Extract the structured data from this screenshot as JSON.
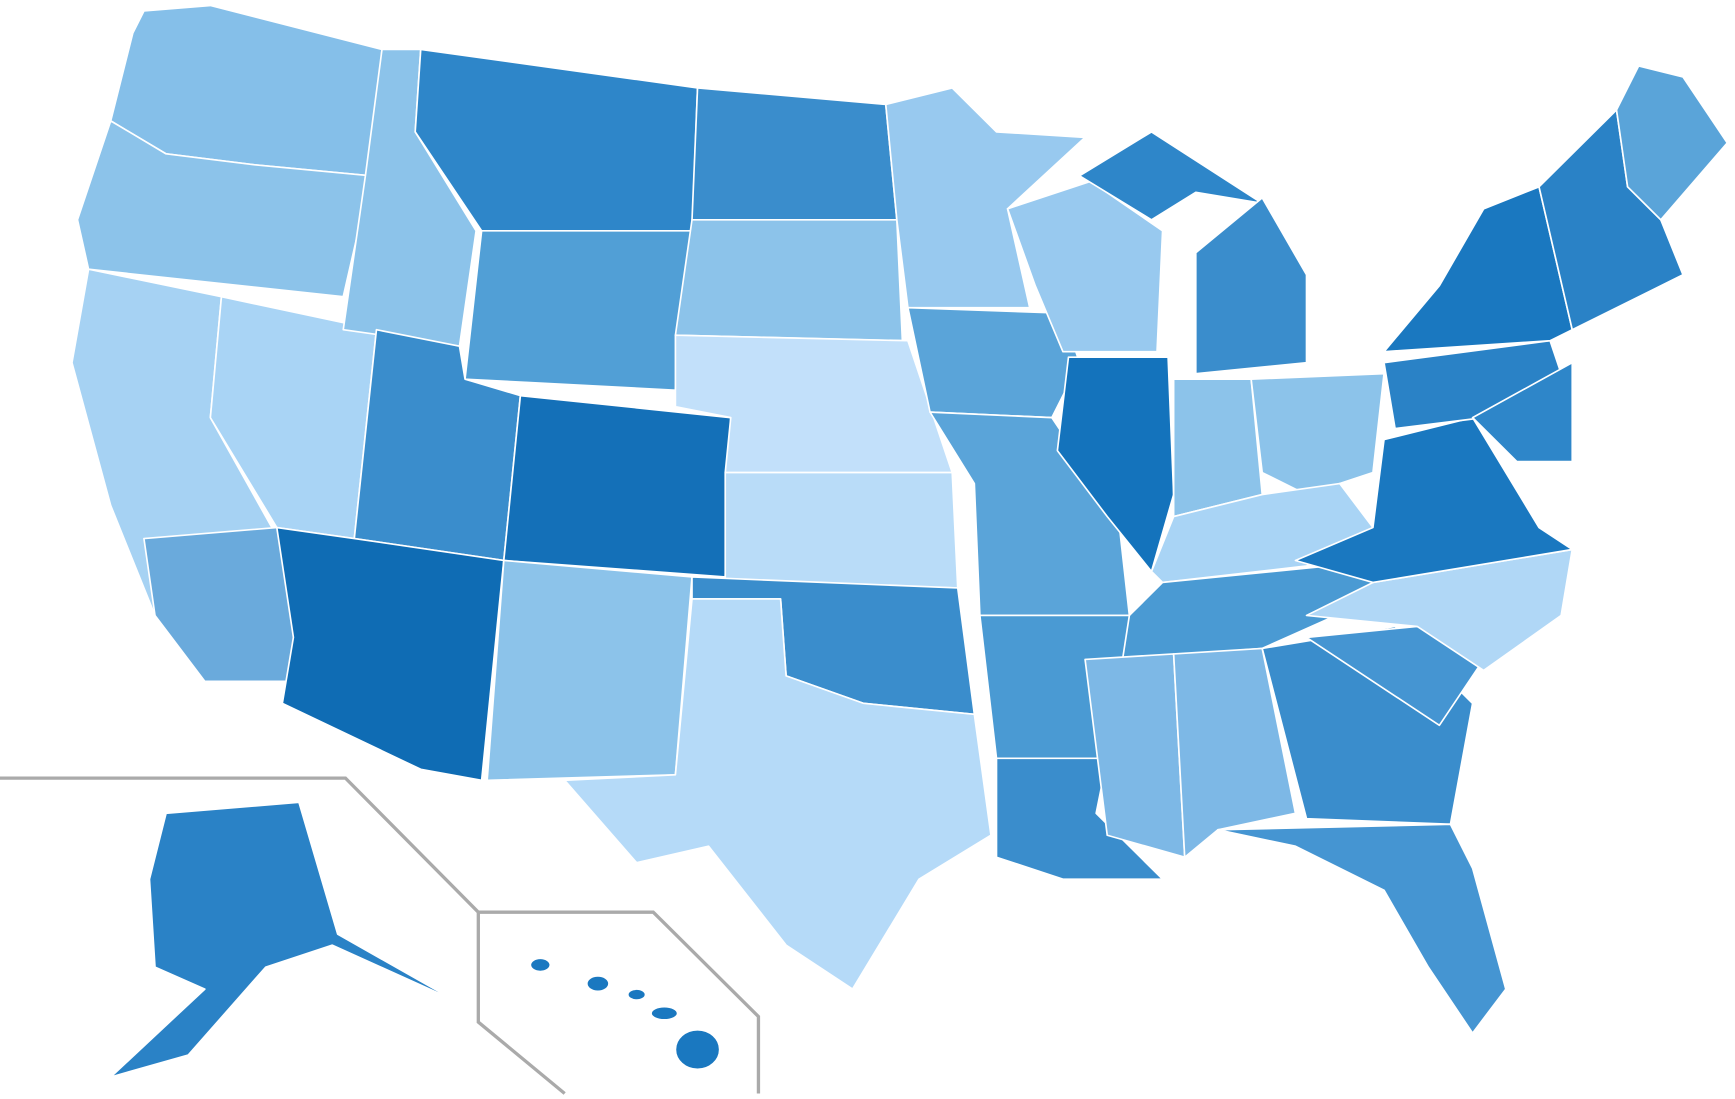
{
  "map": {
    "regions": [
      {
        "color": "#85bfe9"
      },
      {
        "color": "#8cc3ea"
      },
      {
        "color": "#a6d2f3"
      },
      {
        "color": "#6aaadc"
      },
      {
        "color": "#a9d4f5"
      },
      {
        "color": "#8cc3ea"
      },
      {
        "color": "#2e86c9"
      },
      {
        "color": "#519fd6"
      },
      {
        "color": "#3a8dcc"
      },
      {
        "color": "#1470b8"
      },
      {
        "color": "#0f6cb4"
      },
      {
        "color": "#8cc3ea"
      },
      {
        "color": "#3a8dcc"
      },
      {
        "color": "#8cc3ea"
      },
      {
        "color": "#c2e0fa"
      },
      {
        "color": "#b9dcf8"
      },
      {
        "color": "#3a8dcc"
      },
      {
        "color": "#b5daf8"
      },
      {
        "color": "#98c9ef"
      },
      {
        "color": "#5aa4d9"
      },
      {
        "color": "#5aa4d9"
      },
      {
        "color": "#98c9ef"
      },
      {
        "color": "#1473bc"
      },
      {
        "color": "#2e86c9"
      },
      {
        "color": "#3a8dcc"
      },
      {
        "color": "#8cc3ea"
      },
      {
        "color": "#8cc3ea"
      },
      {
        "color": "#a9d4f5"
      },
      {
        "color": "#4a9ad3"
      },
      {
        "color": "#4a9ad3"
      },
      {
        "color": "#3a8dcc"
      },
      {
        "color": "#7db8e6"
      },
      {
        "color": "#7db8e6"
      },
      {
        "color": "#3a8dcc"
      },
      {
        "color": "#4595d2"
      },
      {
        "color": "#4595d2"
      },
      {
        "color": "#b0d7f6"
      },
      {
        "color": "#1a78c0"
      },
      {
        "color": "#2a82c6"
      },
      {
        "color": "#1a78c0"
      },
      {
        "color": "#2a82c6"
      },
      {
        "color": "#5aa4d9"
      },
      {
        "color": "#2e86c9"
      },
      {
        "color": "#2a82c6"
      },
      {
        "color": "#1a78c0"
      }
    ]
  }
}
